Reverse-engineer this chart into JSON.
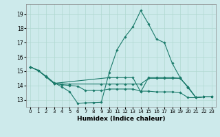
{
  "title": "",
  "xlabel": "Humidex (Indice chaleur)",
  "ylabel": "",
  "bg_color": "#cdeaeb",
  "grid_color": "#b0d8d0",
  "line_color": "#1a7a6a",
  "xlim": [
    -0.5,
    23.5
  ],
  "ylim": [
    12.5,
    19.7
  ],
  "xticks": [
    0,
    1,
    2,
    3,
    4,
    5,
    6,
    7,
    8,
    9,
    10,
    11,
    12,
    13,
    14,
    15,
    16,
    17,
    18,
    19,
    20,
    21,
    22,
    23
  ],
  "yticks": [
    13,
    14,
    15,
    16,
    17,
    18,
    19
  ],
  "series": [
    {
      "x": [
        0,
        1,
        2,
        3,
        4,
        5,
        6,
        7,
        8,
        9,
        10,
        11,
        12,
        13,
        14,
        15,
        16,
        17,
        18,
        19,
        20,
        21,
        22,
        23
      ],
      "y": [
        15.3,
        15.05,
        14.65,
        14.2,
        13.9,
        13.55,
        12.75,
        12.78,
        12.8,
        12.82,
        14.9,
        16.5,
        17.4,
        18.1,
        19.25,
        18.3,
        17.25,
        17.0,
        15.55,
        14.55,
        13.85,
        13.15,
        13.2,
        13.2
      ]
    },
    {
      "x": [
        0,
        1,
        2,
        3,
        4,
        5,
        9,
        10,
        11,
        12,
        13,
        14,
        15,
        16,
        17,
        18,
        19,
        20,
        21,
        22,
        23
      ],
      "y": [
        15.3,
        15.05,
        14.6,
        14.15,
        14.1,
        14.1,
        14.1,
        14.1,
        14.1,
        14.1,
        14.1,
        14.1,
        14.5,
        14.5,
        14.5,
        14.5,
        14.5,
        13.9,
        13.15,
        13.2,
        13.2
      ]
    },
    {
      "x": [
        0,
        1,
        2,
        3,
        4,
        5,
        6,
        7,
        8,
        9,
        10,
        11,
        12,
        13,
        14,
        15,
        16,
        17,
        18,
        19,
        20,
        21,
        22,
        23
      ],
      "y": [
        15.3,
        15.05,
        14.6,
        14.15,
        14.05,
        14.0,
        13.95,
        13.65,
        13.65,
        13.65,
        13.75,
        13.75,
        13.75,
        13.75,
        13.6,
        13.6,
        13.55,
        13.55,
        13.55,
        13.5,
        13.15,
        13.15,
        13.2,
        13.2
      ]
    },
    {
      "x": [
        0,
        1,
        2,
        3,
        10,
        11,
        12,
        13,
        14,
        15,
        16,
        17,
        18,
        19,
        20,
        21,
        22,
        23
      ],
      "y": [
        15.3,
        15.05,
        14.6,
        14.15,
        14.55,
        14.55,
        14.55,
        14.55,
        13.55,
        14.55,
        14.55,
        14.55,
        14.55,
        14.5,
        13.9,
        13.15,
        13.2,
        13.2
      ]
    }
  ]
}
